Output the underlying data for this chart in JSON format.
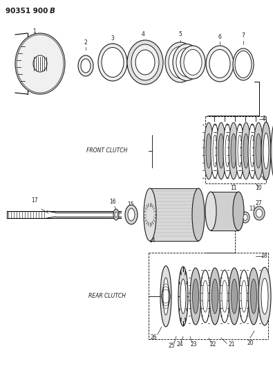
{
  "title_left": "90351 900",
  "title_right": "B",
  "background_color": "#ffffff",
  "line_color": "#1a1a1a",
  "text_color": "#1a1a1a",
  "fig_width": 3.95,
  "fig_height": 5.33,
  "dpi": 100,
  "front_clutch_label": "FRONT CLUTCH",
  "rear_clutch_label": "REAR CLUTCH"
}
